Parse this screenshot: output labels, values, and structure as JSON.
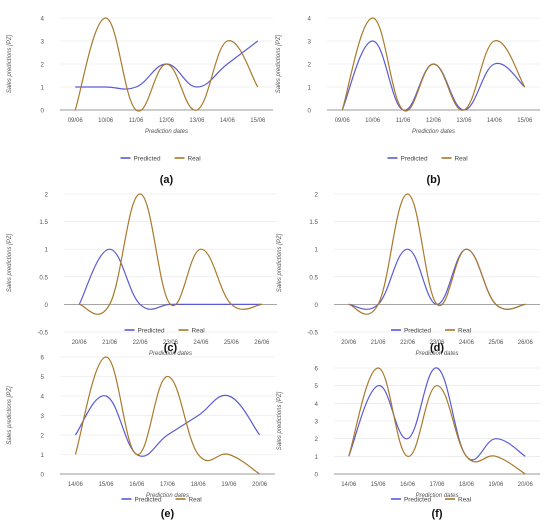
{
  "colors": {
    "predicted": "#5b5bd6",
    "real": "#a97a2c",
    "grid": "#e4e4e4",
    "axis": "#9a9a9a",
    "tick": "#555555"
  },
  "chart_data": [
    {
      "type": "line",
      "panel_label": "(a)",
      "categories": [
        "09/06",
        "10/06",
        "11/06",
        "12/06",
        "13/06",
        "14/06",
        "15/06"
      ],
      "series": [
        {
          "name": "Predicted",
          "values": [
            1,
            1,
            1,
            2,
            1,
            2,
            3
          ]
        },
        {
          "name": "Real",
          "values": [
            0,
            4,
            0,
            2,
            0,
            3,
            1
          ]
        }
      ],
      "ylim": [
        0,
        4
      ],
      "yticks": [
        0,
        1,
        2,
        3,
        4
      ],
      "ylabel": "Sales predictions [PZ]",
      "xlabel": "Prediction dates",
      "grid": true,
      "legend": "bottom"
    },
    {
      "type": "line",
      "panel_label": "(b)",
      "categories": [
        "09/06",
        "10/06",
        "11/06",
        "12/06",
        "13/06",
        "14/06",
        "15/06"
      ],
      "series": [
        {
          "name": "Predicted",
          "values": [
            0,
            3,
            0,
            2,
            0,
            2,
            1
          ]
        },
        {
          "name": "Real",
          "values": [
            0,
            4,
            0,
            2,
            0,
            3,
            1
          ]
        }
      ],
      "ylim": [
        0,
        4
      ],
      "yticks": [
        0,
        1,
        2,
        3,
        4
      ],
      "ylabel": "Sales predictions [PZ]",
      "xlabel": "Prediction dates",
      "grid": true,
      "legend": "bottom"
    },
    {
      "type": "line",
      "panel_label": "(c)",
      "categories": [
        "20/06",
        "21/06",
        "22/06",
        "23/06",
        "24/06",
        "25/06",
        "26/06"
      ],
      "series": [
        {
          "name": "Predicted",
          "values": [
            0,
            1,
            0,
            0,
            0,
            0,
            0
          ]
        },
        {
          "name": "Real",
          "values": [
            0,
            0,
            2,
            0,
            1,
            0,
            0
          ]
        }
      ],
      "ylim": [
        -0.5,
        2
      ],
      "yticks": [
        -0.5,
        0,
        0.5,
        1,
        1.5,
        2
      ],
      "ylabel": "Sales predictions [PZ]",
      "xlabel": "Prediction dates",
      "grid": true,
      "legend": "bottom"
    },
    {
      "type": "line",
      "panel_label": "(d)",
      "categories": [
        "20/06",
        "21/06",
        "22/06",
        "23/06",
        "24/06",
        "25/06",
        "26/06"
      ],
      "series": [
        {
          "name": "Predicted",
          "values": [
            0,
            0,
            1,
            0,
            1,
            0,
            0
          ]
        },
        {
          "name": "Real",
          "values": [
            0,
            0,
            2,
            0,
            1,
            0,
            0
          ]
        }
      ],
      "ylim": [
        -0.5,
        2
      ],
      "yticks": [
        -0.5,
        0,
        0.5,
        1,
        1.5,
        2
      ],
      "ylabel": "Sales predictions [PZ]",
      "xlabel": "Prediction dates",
      "grid": true,
      "legend": "bottom"
    },
    {
      "type": "line",
      "panel_label": "(e)",
      "categories": [
        "14/06",
        "15/06",
        "16/06",
        "17/06",
        "18/06",
        "19/06",
        "20/06"
      ],
      "series": [
        {
          "name": "Predicted",
          "values": [
            2,
            4,
            1,
            2,
            3,
            4,
            2
          ]
        },
        {
          "name": "Real",
          "values": [
            1,
            6,
            1,
            5,
            1,
            1,
            0
          ]
        }
      ],
      "ylim": [
        0,
        6
      ],
      "yticks": [
        0,
        1,
        2,
        3,
        4,
        5,
        6
      ],
      "ylabel": "Sales predictions [PZ]",
      "xlabel": "Prediction dates",
      "grid": true,
      "legend": "bottom"
    },
    {
      "type": "line",
      "panel_label": "(f)",
      "categories": [
        "14/06",
        "15/06",
        "16/06",
        "17/06",
        "18/06",
        "19/06",
        "20/06"
      ],
      "series": [
        {
          "name": "Predicted",
          "values": [
            1,
            5,
            2,
            6,
            1,
            2,
            1
          ]
        },
        {
          "name": "Real",
          "values": [
            1,
            6,
            1,
            5,
            1,
            1,
            0
          ]
        }
      ],
      "ylim": [
        0,
        6
      ],
      "yticks": [
        0,
        1,
        2,
        3,
        4,
        5,
        6
      ],
      "ylabel": "Sales predictions [PZ]",
      "xlabel": "Prediction dates",
      "grid": true,
      "legend": "bottom"
    }
  ]
}
